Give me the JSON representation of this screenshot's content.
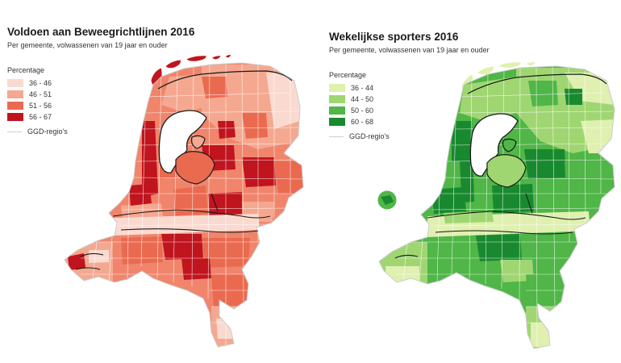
{
  "left_map": {
    "title": "Voldoen aan Beweegrichtlijnen 2016",
    "subtitle": "Per gemeente, volwassenen van 19 jaar en ouder",
    "legend_title": "Percentage",
    "legend": [
      {
        "label": "36 - 46",
        "color": "#fadad0"
      },
      {
        "label": "46 - 51",
        "color": "#f5a890"
      },
      {
        "label": "51 - 56",
        "color": "#ea6a50"
      },
      {
        "label": "56 - 67",
        "color": "#c0141e"
      }
    ],
    "ggd_label": "GGD-regio's"
  },
  "right_map": {
    "title": "Wekelijkse sporters 2016",
    "subtitle": "Per gemeente, volwassenen van 19 jaar en ouder",
    "legend_title": "Percentage",
    "legend": [
      {
        "label": "36 - 44",
        "color": "#dff0b0"
      },
      {
        "label": "44 - 50",
        "color": "#9fd672"
      },
      {
        "label": "50 - 60",
        "color": "#4fb647"
      },
      {
        "label": "60 - 68",
        "color": "#19892f"
      }
    ],
    "ggd_label": "GGD-regio's"
  }
}
